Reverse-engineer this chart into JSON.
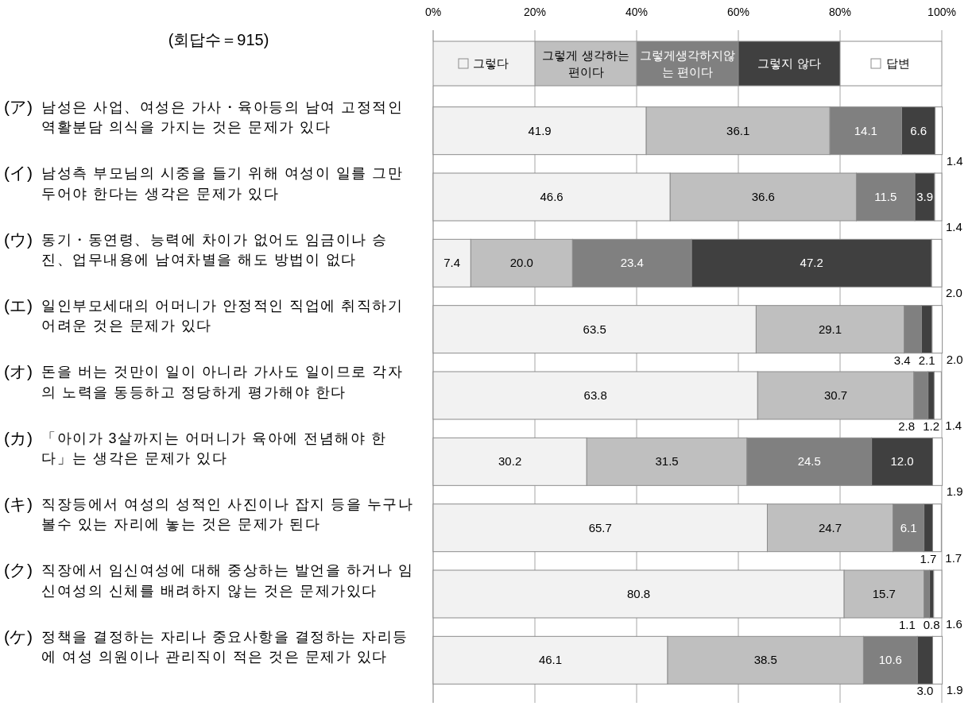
{
  "chart_data": {
    "type": "bar",
    "orientation": "horizontal",
    "stacked": true,
    "title": "(회답수＝915)",
    "categories": [
      "(ア) 남성은 사업、여성은 가사・육아등의 남여 고정적인 역활분담 의식을 가지는 것은 문제가 있다",
      "(イ) 남성측 부모님의 시중을 들기 위해 여성이 일를 그만 두어야 한다는 생각은 문제가 있다",
      "(ウ) 동기・동연령、능력에 차이가 없어도 임금이나 승진、업무내용에 남여차별을 해도 방법이 없다",
      "(エ) 일인부모세대의 어머니가 안정적인 직업에 취직하기 어려운 것은 문제가 있다",
      "(オ) 돈을 버는 것만이 일이 아니라 가사도 일이므로 각자의 노력을 동등하고 정당하게 평가해야 한다",
      "(カ) 「아이가 3살까지는 어머니가 육아에 전념해야 한다」는 생각은 문제가 있다",
      "(キ) 직장등에서 여성의 성적인 사진이나 잡지 등을 누구나 볼수 있는 자리에 놓는 것은 문제가 된다",
      "(ク) 직장에서 임신여성에 대해 중상하는 발언을 하거나 임신여성의 신체를 배려하지 않는 것은 문제가있다",
      "(ケ) 정책을 결정하는 자리나 중요사항을 결정하는 자리등에 여성 의원이나 관리직이 적은 것은 문제가 있다"
    ],
    "series": [
      {
        "name": "그렇다",
        "color": "#f2f2f2",
        "values": [
          41.9,
          46.6,
          7.4,
          63.5,
          63.8,
          30.2,
          65.7,
          80.8,
          46.1
        ],
        "value_labels": [
          "41.9",
          "46.6",
          "7.4",
          "63.5",
          "63.8",
          "30.2",
          "65.7",
          "80.8",
          "46.1"
        ]
      },
      {
        "name": "그렇게 생각하는 편이다",
        "color": "#bfbfbf",
        "values": [
          36.1,
          36.6,
          20.0,
          29.1,
          30.7,
          31.5,
          24.7,
          15.7,
          38.5
        ],
        "value_labels": [
          "36.1",
          "36.6",
          "20.0",
          "29.1",
          "30.7",
          "31.5",
          "24.7",
          "15.7",
          "38.5"
        ]
      },
      {
        "name": "그렇게생각하지않는 편이다",
        "color": "#808080",
        "values": [
          14.1,
          11.5,
          23.4,
          3.4,
          2.8,
          24.5,
          6.1,
          1.1,
          10.6
        ],
        "value_labels": [
          "14.1",
          "11.5",
          "23.4",
          "3.4",
          "2.8",
          "24.5",
          "6.1",
          "1.1",
          "10.6"
        ]
      },
      {
        "name": "그렇지 않다",
        "color": "#404040",
        "values": [
          6.6,
          3.9,
          47.2,
          2.1,
          1.2,
          12.0,
          1.7,
          0.8,
          3.0
        ],
        "value_labels": [
          "6.6",
          "3.9",
          "47.2",
          "2.1",
          "1.2",
          "12.0",
          "1.7",
          "0.8",
          "3.0"
        ]
      },
      {
        "name": "답변",
        "color": "#ffffff",
        "values": [
          1.4,
          1.4,
          2.0,
          2.0,
          1.4,
          1.9,
          1.7,
          1.6,
          1.9
        ],
        "value_labels": [
          "1.4",
          "1.4",
          "2.0",
          "2.0",
          "1.4",
          "1.9",
          "1.7",
          "1.6",
          "1.9"
        ]
      }
    ],
    "xlim": [
      0,
      100
    ],
    "xticks": [
      {
        "value": 0,
        "label": "0%"
      },
      {
        "value": 20,
        "label": "20%"
      },
      {
        "value": 40,
        "label": "40%"
      },
      {
        "value": 60,
        "label": "60%"
      },
      {
        "value": 80,
        "label": "80%"
      },
      {
        "value": 100,
        "label": "100%"
      }
    ],
    "grid": "x",
    "legend": "top"
  }
}
